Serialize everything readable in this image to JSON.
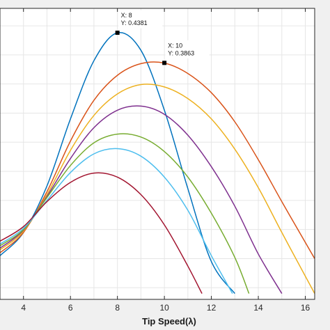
{
  "chart_data": {
    "type": "line",
    "xlabel": "Tip Speed(λ)",
    "ylabel": "",
    "title": "",
    "xlim": [
      3,
      16.4
    ],
    "ylim": [
      -0.02,
      0.48
    ],
    "xticks": [
      4,
      6,
      8,
      10,
      12,
      14,
      16
    ],
    "x_tick_labels": [
      "4",
      "6",
      "8",
      "10",
      "12",
      "14",
      "16"
    ],
    "grid": true,
    "legend": "none",
    "series": [
      {
        "color": "#0072BD",
        "points": [
          [
            3,
            0.055
          ],
          [
            4,
            0.095
          ],
          [
            5,
            0.175
          ],
          [
            6,
            0.29
          ],
          [
            7,
            0.39
          ],
          [
            8,
            0.438
          ],
          [
            9,
            0.408
          ],
          [
            10,
            0.305
          ],
          [
            11,
            0.17
          ],
          [
            12,
            0.045
          ],
          [
            13,
            -0.01
          ]
        ]
      },
      {
        "color": "#D95319",
        "points": [
          [
            3,
            0.06
          ],
          [
            4,
            0.095
          ],
          [
            5,
            0.165
          ],
          [
            6,
            0.252
          ],
          [
            7,
            0.322
          ],
          [
            8,
            0.365
          ],
          [
            9,
            0.385
          ],
          [
            10,
            0.386
          ],
          [
            11,
            0.368
          ],
          [
            12,
            0.335
          ],
          [
            13,
            0.285
          ],
          [
            14,
            0.22
          ],
          [
            15,
            0.148
          ],
          [
            16,
            0.078
          ],
          [
            16.4,
            0.05
          ]
        ]
      },
      {
        "color": "#EDB120",
        "points": [
          [
            3,
            0.065
          ],
          [
            4,
            0.097
          ],
          [
            5,
            0.16
          ],
          [
            6,
            0.236
          ],
          [
            7,
            0.296
          ],
          [
            8,
            0.333
          ],
          [
            9,
            0.349
          ],
          [
            10,
            0.345
          ],
          [
            11,
            0.325
          ],
          [
            12,
            0.29
          ],
          [
            13,
            0.238
          ],
          [
            14,
            0.172
          ],
          [
            15,
            0.095
          ],
          [
            16,
            0.02
          ],
          [
            16.4,
            -0.01
          ]
        ]
      },
      {
        "color": "#7E2F8E",
        "points": [
          [
            3,
            0.068
          ],
          [
            4,
            0.099
          ],
          [
            5,
            0.157
          ],
          [
            6,
            0.222
          ],
          [
            7,
            0.275
          ],
          [
            8,
            0.305
          ],
          [
            9,
            0.312
          ],
          [
            10,
            0.298
          ],
          [
            11,
            0.262
          ],
          [
            12,
            0.208
          ],
          [
            13,
            0.14
          ],
          [
            14,
            0.058
          ],
          [
            15,
            -0.01
          ]
        ]
      },
      {
        "color": "#77AC30",
        "points": [
          [
            3,
            0.072
          ],
          [
            4,
            0.1
          ],
          [
            5,
            0.155
          ],
          [
            6,
            0.21
          ],
          [
            7,
            0.249
          ],
          [
            8,
            0.264
          ],
          [
            9,
            0.259
          ],
          [
            10,
            0.234
          ],
          [
            11,
            0.19
          ],
          [
            12,
            0.128
          ],
          [
            13,
            0.052
          ],
          [
            13.6,
            -0.01
          ]
        ]
      },
      {
        "color": "#4DBEEE",
        "points": [
          [
            3,
            0.075
          ],
          [
            4,
            0.102
          ],
          [
            5,
            0.15
          ],
          [
            6,
            0.198
          ],
          [
            7,
            0.23
          ],
          [
            8,
            0.239
          ],
          [
            9,
            0.226
          ],
          [
            10,
            0.19
          ],
          [
            11,
            0.133
          ],
          [
            12,
            0.055
          ],
          [
            12.9,
            -0.01
          ]
        ]
      },
      {
        "color": "#A2142F",
        "points": [
          [
            3,
            0.08
          ],
          [
            4,
            0.105
          ],
          [
            5,
            0.148
          ],
          [
            6,
            0.181
          ],
          [
            7,
            0.197
          ],
          [
            8,
            0.19
          ],
          [
            9,
            0.16
          ],
          [
            10,
            0.108
          ],
          [
            11,
            0.037
          ],
          [
            11.6,
            -0.01
          ]
        ]
      }
    ],
    "annotations": [
      {
        "x": 8,
        "y": 0.4381,
        "label_x": "X: 8",
        "label_y": "Y: 0.4381"
      },
      {
        "x": 10,
        "y": 0.3863,
        "label_x": "X: 10",
        "label_y": "Y: 0.3863"
      }
    ]
  }
}
